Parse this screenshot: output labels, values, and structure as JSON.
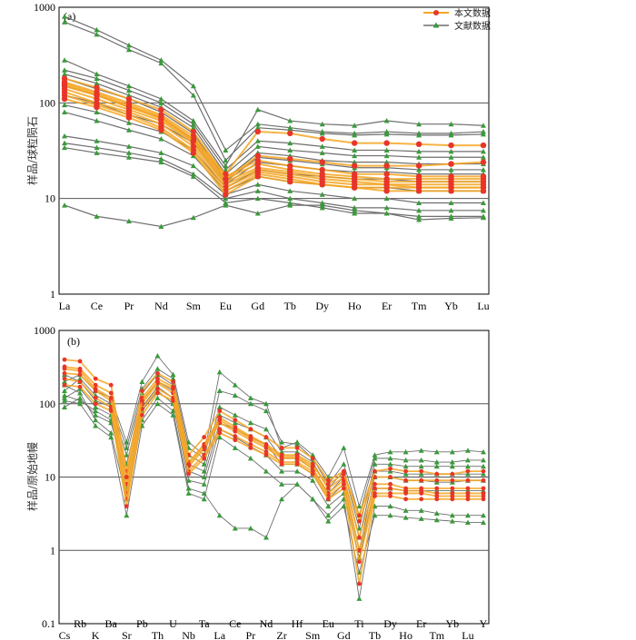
{
  "legend": {
    "this_study": "本文数据",
    "literature": "文献数据"
  },
  "colors": {
    "this_study_line": "#f5a623",
    "this_study_marker": "#e8352a",
    "literature_line": "#6e6e6e",
    "literature_marker": "#3a9a3a",
    "grid": "#555555"
  },
  "chart_data": [
    {
      "type": "line",
      "panel_label": "(a)",
      "ylabel": "样品/球粒陨石",
      "yscale": "log",
      "ylim": [
        1,
        1000
      ],
      "yticks": [
        "1",
        "10",
        "100",
        "1000"
      ],
      "categories": [
        "La",
        "Ce",
        "Pr",
        "Nd",
        "Sm",
        "Eu",
        "Gd",
        "Tb",
        "Dy",
        "Ho",
        "Er",
        "Tm",
        "Yb",
        "Lu"
      ],
      "this_study": [
        [
          180,
          145,
          110,
          85,
          50,
          17,
          25,
          22,
          20,
          18,
          18,
          17,
          17,
          17
        ],
        [
          165,
          130,
          100,
          75,
          45,
          16,
          23,
          20,
          18,
          17,
          16,
          16,
          16,
          16
        ],
        [
          150,
          120,
          90,
          70,
          40,
          15,
          21,
          19,
          17,
          16,
          15,
          15,
          15,
          15
        ],
        [
          140,
          110,
          85,
          65,
          38,
          14,
          20,
          18,
          16,
          15,
          14,
          14,
          14,
          14
        ],
        [
          130,
          100,
          80,
          60,
          35,
          13,
          19,
          17,
          15,
          14,
          14,
          13,
          13,
          13
        ],
        [
          120,
          95,
          75,
          55,
          32,
          12,
          18,
          16,
          14,
          13,
          13,
          13,
          13,
          13
        ],
        [
          110,
          90,
          70,
          52,
          30,
          11,
          17,
          15,
          14,
          13,
          12,
          12,
          12,
          12
        ],
        [
          160,
          125,
          95,
          72,
          42,
          18,
          50,
          48,
          42,
          38,
          38,
          37,
          36,
          36
        ],
        [
          155,
          120,
          92,
          68,
          40,
          16,
          28,
          26,
          24,
          22,
          22,
          22,
          23,
          24
        ]
      ],
      "literature": [
        [
          800,
          580,
          400,
          280,
          150,
          32,
          60,
          55,
          50,
          48,
          50,
          48,
          48,
          50
        ],
        [
          700,
          520,
          360,
          260,
          120,
          25,
          55,
          52,
          48,
          46,
          47,
          46,
          46,
          47
        ],
        [
          280,
          200,
          150,
          110,
          65,
          22,
          85,
          65,
          60,
          58,
          65,
          60,
          60,
          58
        ],
        [
          220,
          180,
          135,
          100,
          60,
          20,
          40,
          38,
          35,
          32,
          32,
          31,
          31,
          31
        ],
        [
          200,
          160,
          120,
          90,
          55,
          18,
          35,
          32,
          30,
          28,
          28,
          27,
          27,
          27
        ],
        [
          180,
          140,
          110,
          80,
          48,
          16,
          30,
          28,
          25,
          24,
          24,
          23,
          23,
          23
        ],
        [
          150,
          120,
          90,
          70,
          42,
          15,
          27,
          25,
          23,
          21,
          21,
          20,
          20,
          20
        ],
        [
          120,
          100,
          75,
          60,
          38,
          14,
          24,
          22,
          20,
          19,
          19,
          18,
          18,
          18
        ],
        [
          95,
          80,
          62,
          50,
          32,
          13,
          20,
          18,
          17,
          16,
          16,
          15,
          15,
          15
        ],
        [
          80,
          65,
          52,
          42,
          28,
          12,
          17,
          15,
          14,
          13,
          13,
          12,
          12,
          12
        ],
        [
          45,
          40,
          35,
          30,
          22,
          11,
          14,
          12,
          11,
          10,
          10,
          9,
          9,
          9
        ],
        [
          38,
          34,
          30,
          26,
          18,
          10,
          12,
          10,
          9,
          8,
          8,
          7.5,
          7.5,
          7.5
        ],
        [
          34,
          30,
          27,
          24,
          17,
          9,
          10,
          9,
          8,
          7,
          7,
          6.5,
          6.5,
          6.5
        ],
        [
          8.5,
          6.5,
          5.8,
          5.1,
          6.3,
          8.5,
          7,
          8.5,
          8.5,
          7.5,
          7,
          6,
          6.2,
          6.3
        ]
      ]
    },
    {
      "type": "line",
      "panel_label": "(b)",
      "ylabel": "样品/原始地幔",
      "yscale": "log",
      "ylim": [
        0.1,
        1000
      ],
      "yticks": [
        "0.1",
        "1",
        "10",
        "100",
        "1000"
      ],
      "categories": [
        "Cs",
        "Rb",
        "K",
        "Ba",
        "Sr",
        "Pb",
        "Th",
        "U",
        "Nb",
        "Ta",
        "La",
        "Ce",
        "Pr",
        "Nd",
        "Zr",
        "Hf",
        "Sm",
        "Eu",
        "Gd",
        "Ti",
        "Tb",
        "Dy",
        "Ho",
        "Er",
        "Tm",
        "Yb",
        "Lu",
        "Y"
      ],
      "this_study": [
        [
          400,
          380,
          220,
          180,
          12,
          150,
          260,
          200,
          20,
          35,
          80,
          60,
          45,
          35,
          25,
          25,
          18,
          9,
          12,
          2.5,
          10,
          10,
          9,
          9,
          9,
          9,
          9,
          9
        ],
        [
          320,
          300,
          180,
          140,
          8,
          120,
          220,
          170,
          16,
          28,
          65,
          48,
          36,
          28,
          20,
          20,
          15,
          7,
          10,
          1.5,
          8,
          8,
          7,
          7,
          7,
          7,
          7,
          7
        ],
        [
          260,
          250,
          150,
          110,
          6,
          100,
          190,
          140,
          14,
          24,
          55,
          42,
          32,
          25,
          18,
          18,
          13,
          6,
          9,
          1.0,
          7,
          7,
          6.5,
          6.5,
          6,
          6,
          6,
          6
        ],
        [
          220,
          200,
          120,
          90,
          5,
          85,
          160,
          120,
          12,
          20,
          45,
          36,
          28,
          22,
          16,
          16,
          12,
          5.5,
          8,
          0.7,
          6,
          6,
          6,
          6,
          5.5,
          5.5,
          5.5,
          5.5
        ],
        [
          180,
          170,
          100,
          80,
          4,
          70,
          140,
          110,
          11,
          18,
          40,
          32,
          25,
          20,
          15,
          15,
          11,
          5,
          7,
          0.35,
          5.5,
          5.5,
          5,
          5,
          5,
          5,
          5,
          5
        ],
        [
          300,
          280,
          160,
          120,
          10,
          110,
          200,
          160,
          15,
          26,
          60,
          45,
          34,
          27,
          19,
          19,
          14,
          8,
          11,
          3.0,
          12,
          13,
          12,
          12,
          11,
          11,
          12,
          12
        ]
      ],
      "literature": [
        [
          200,
          250,
          150,
          120,
          30,
          200,
          450,
          250,
          30,
          20,
          270,
          180,
          120,
          100,
          25,
          30,
          20,
          10,
          25,
          4,
          20,
          22,
          22,
          23,
          22,
          22,
          23,
          22
        ],
        [
          150,
          220,
          130,
          100,
          25,
          160,
          300,
          220,
          25,
          18,
          150,
          130,
          100,
          80,
          30,
          28,
          18,
          8,
          15,
          3,
          18,
          18,
          17,
          17,
          16,
          16,
          17,
          17
        ],
        [
          250,
          200,
          110,
          90,
          20,
          140,
          250,
          180,
          20,
          15,
          90,
          70,
          55,
          45,
          22,
          22,
          16,
          7,
          12,
          2,
          15,
          15,
          14,
          14,
          14,
          14,
          14,
          14
        ],
        [
          120,
          160,
          90,
          70,
          15,
          110,
          200,
          150,
          15,
          12,
          70,
          55,
          45,
          35,
          18,
          18,
          13,
          6,
          10,
          1.5,
          12,
          12,
          11,
          11,
          11,
          11,
          11,
          11
        ],
        [
          90,
          120,
          70,
          55,
          10,
          90,
          170,
          120,
          12,
          10,
          55,
          45,
          35,
          28,
          15,
          15,
          11,
          5,
          8,
          1.0,
          10,
          10,
          9,
          9,
          8.5,
          8.5,
          9,
          9
        ],
        [
          180,
          140,
          60,
          40,
          5,
          60,
          120,
          80,
          7,
          6,
          3,
          2,
          2,
          1.5,
          5,
          8,
          5,
          3,
          5,
          0.22,
          4,
          4,
          3.5,
          3.5,
          3.2,
          3,
          3,
          3
        ],
        [
          110,
          100,
          50,
          35,
          3,
          50,
          100,
          70,
          6,
          5,
          35,
          25,
          18,
          12,
          8,
          8,
          5,
          2.5,
          4,
          0.5,
          3,
          3,
          2.8,
          2.7,
          2.6,
          2.5,
          2.4,
          2.4
        ],
        [
          130,
          110,
          80,
          60,
          7,
          80,
          150,
          100,
          9,
          8,
          45,
          35,
          26,
          20,
          12,
          12,
          9,
          4,
          6,
          0.8,
          7,
          7,
          6.5,
          6.5,
          6.5,
          6.5,
          6.5,
          6.5
        ]
      ]
    }
  ]
}
